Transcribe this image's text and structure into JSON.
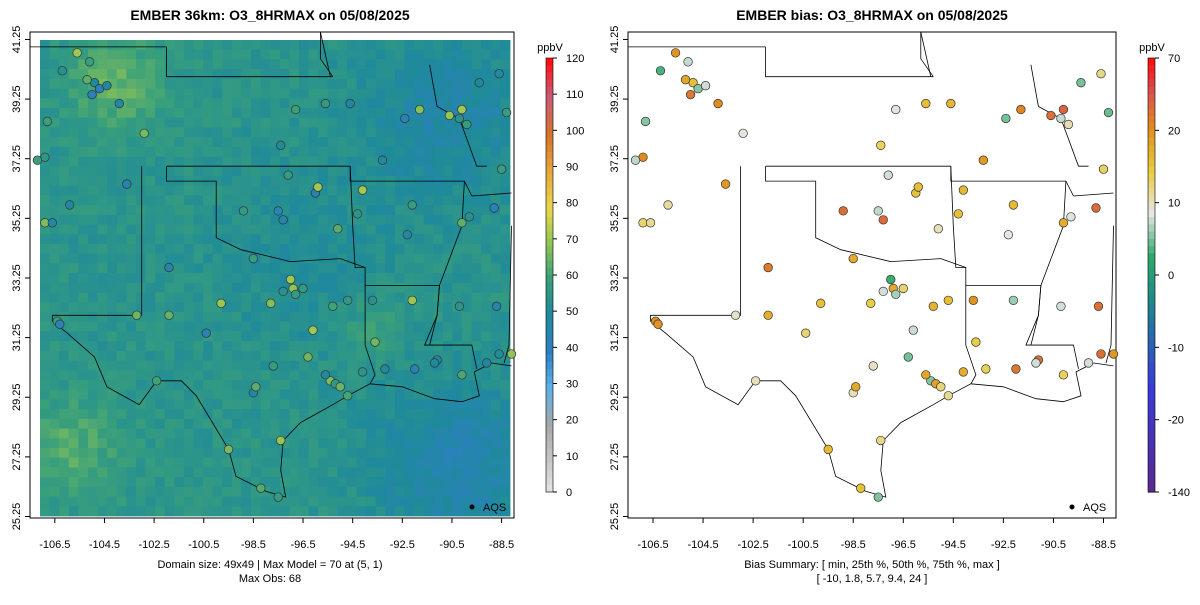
{
  "left_panel": {
    "title": "EMBER 36km: O3_8HRMAX on 05/08/2025",
    "colorbar": {
      "unit": "ppbV",
      "ticks": [
        0,
        10,
        20,
        30,
        40,
        50,
        60,
        70,
        80,
        90,
        100,
        110,
        120
      ]
    },
    "legend_label": "AQS",
    "footer_line1": "Domain size: 49x49 | Max Model = 70 at (5, 1)",
    "footer_line2": "Max Obs: 68"
  },
  "right_panel": {
    "title": "EMBER bias: O3_8HRMAX on 05/08/2025",
    "colorbar": {
      "unit": "ppbV",
      "ticks": [
        70,
        20,
        10,
        0,
        -10,
        -20,
        -140
      ]
    },
    "legend_label": "AQS",
    "footer_line1": "Bias Summary: [ min, 25th %, 50th %, 75th %, max ]",
    "footer_line2": "[ -10,   1.8,   5.7,   9.4,   24 ]"
  },
  "axes": {
    "x_ticks": [
      "-106.5",
      "-104.5",
      "-102.5",
      "-100.5",
      "-98.5",
      "-96.5",
      "-94.5",
      "-92.5",
      "-90.5",
      "-88.5"
    ],
    "y_ticks": [
      "25.25",
      "27.25",
      "29.25",
      "31.25",
      "33.25",
      "35.25",
      "37.25",
      "39.25",
      "41.25"
    ],
    "x_range": [
      -107.5,
      -88.0
    ],
    "y_range": [
      25.2,
      41.5
    ]
  },
  "colors": {
    "model_low": "#5aaee0",
    "model_mid": "#3f9a86",
    "model_high": "#f2e64a",
    "bias_pos": "#e08a1e",
    "bias_neg": "#3aa070"
  }
}
